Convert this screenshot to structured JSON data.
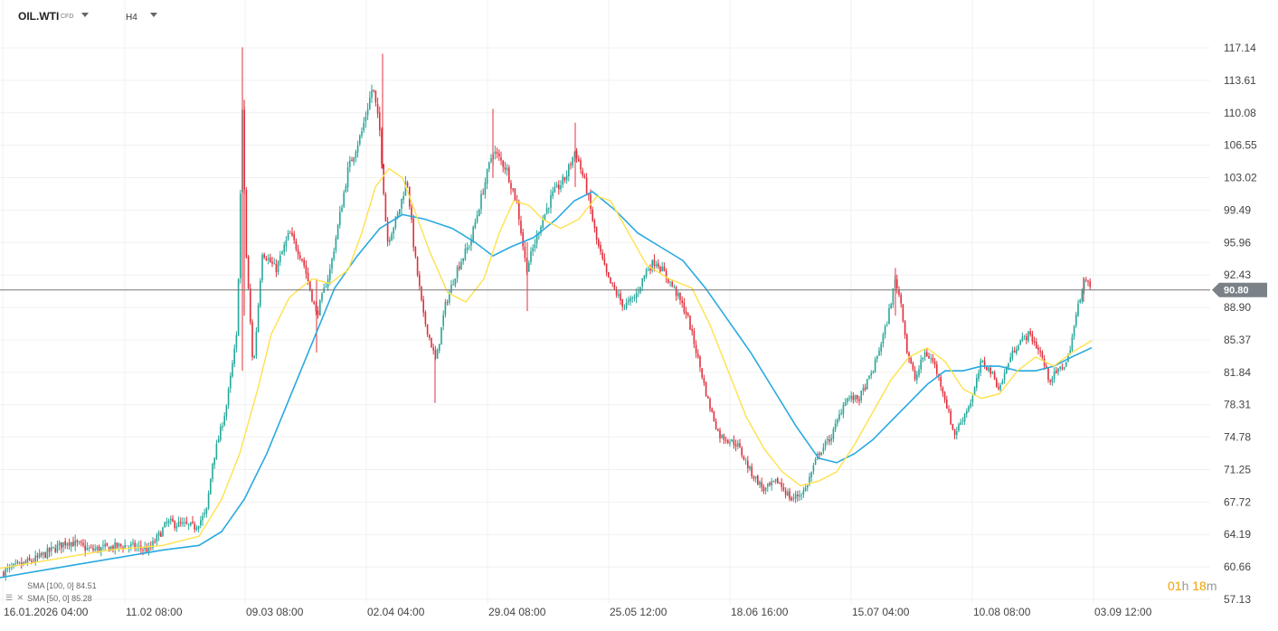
{
  "header": {
    "symbol": "OIL.WTI",
    "instrument_type": "CFD",
    "timeframe": "H4"
  },
  "indicators": [
    {
      "label": "SMA [100, 0] 84.51",
      "color": "#29a9e0"
    },
    {
      "label": "SMA [50, 0] 85.28",
      "color": "#ffe14a"
    }
  ],
  "current_price_label": "90.80",
  "countdown": {
    "hours": "01",
    "h_unit": "h",
    "minutes": "18",
    "m_unit": "m"
  },
  "colors": {
    "up": "#26a69a",
    "down": "#e0303c",
    "sma100": "#29a9e0",
    "sma50": "#ffe14a",
    "price_line": "#777777"
  },
  "chart_data": {
    "type": "candlestick",
    "y_axis_ticks": [
      "117.14",
      "113.61",
      "110.08",
      "106.55",
      "103.02",
      "99.49",
      "95.96",
      "92.43",
      "88.90",
      "85.37",
      "81.84",
      "78.31",
      "74.78",
      "71.25",
      "67.72",
      "64.19",
      "60.66",
      "57.13"
    ],
    "x_axis_ticks": [
      "16.01.2026 04:00",
      "11.02 08:00",
      "09.03 08:00",
      "02.04 04:00",
      "29.04 08:00",
      "25.05 12:00",
      "18.06 16:00",
      "15.07 04:00",
      "10.08 08:00",
      "03.09 12:00"
    ],
    "ylim": [
      57.13,
      117.14
    ],
    "current_price": 90.8,
    "close_path": [
      [
        0,
        60.0
      ],
      [
        40,
        61.5
      ],
      [
        75,
        63.5
      ],
      [
        100,
        62.5
      ],
      [
        140,
        63.0
      ],
      [
        165,
        62.5
      ],
      [
        185,
        65.5
      ],
      [
        215,
        65.0
      ],
      [
        228,
        66.5
      ],
      [
        235,
        72.0
      ],
      [
        250,
        78.0
      ],
      [
        262,
        86.0
      ],
      [
        268,
        110.0
      ],
      [
        272,
        95.0
      ],
      [
        280,
        82.0
      ],
      [
        290,
        95.0
      ],
      [
        305,
        93.0
      ],
      [
        320,
        97.0
      ],
      [
        335,
        94.0
      ],
      [
        350,
        88.0
      ],
      [
        365,
        93.0
      ],
      [
        385,
        104.0
      ],
      [
        400,
        108.0
      ],
      [
        412,
        113.0
      ],
      [
        420,
        108.0
      ],
      [
        428,
        96.0
      ],
      [
        440,
        99.0
      ],
      [
        450,
        103.0
      ],
      [
        458,
        95.0
      ],
      [
        468,
        88.0
      ],
      [
        482,
        83.0
      ],
      [
        492,
        89.0
      ],
      [
        505,
        93.0
      ],
      [
        520,
        96.0
      ],
      [
        530,
        100.0
      ],
      [
        545,
        106.0
      ],
      [
        560,
        104.0
      ],
      [
        572,
        100.0
      ],
      [
        582,
        93.0
      ],
      [
        598,
        98.0
      ],
      [
        610,
        101.0
      ],
      [
        625,
        103.0
      ],
      [
        636,
        106.0
      ],
      [
        648,
        102.0
      ],
      [
        660,
        96.0
      ],
      [
        672,
        92.0
      ],
      [
        690,
        89.0
      ],
      [
        702,
        90.0
      ],
      [
        715,
        93.0
      ],
      [
        725,
        94.0
      ],
      [
        745,
        91.0
      ],
      [
        760,
        88.0
      ],
      [
        775,
        82.0
      ],
      [
        782,
        79.0
      ],
      [
        795,
        75.0
      ],
      [
        815,
        74.0
      ],
      [
        830,
        71.0
      ],
      [
        845,
        69.0
      ],
      [
        860,
        70.0
      ],
      [
        875,
        68.0
      ],
      [
        890,
        69.0
      ],
      [
        905,
        73.0
      ],
      [
        920,
        75.0
      ],
      [
        935,
        79.0
      ],
      [
        950,
        79.0
      ],
      [
        965,
        82.0
      ],
      [
        980,
        87.0
      ],
      [
        990,
        92.0
      ],
      [
        997,
        89.0
      ],
      [
        1003,
        84.0
      ],
      [
        1012,
        81.0
      ],
      [
        1022,
        84.0
      ],
      [
        1032,
        83.0
      ],
      [
        1042,
        80.0
      ],
      [
        1055,
        75.0
      ],
      [
        1065,
        77.0
      ],
      [
        1075,
        79.0
      ],
      [
        1085,
        83.0
      ],
      [
        1095,
        82.0
      ],
      [
        1105,
        80.0
      ],
      [
        1115,
        83.0
      ],
      [
        1125,
        85.0
      ],
      [
        1138,
        86.0
      ],
      [
        1150,
        84.0
      ],
      [
        1160,
        81.0
      ],
      [
        1170,
        82.0
      ],
      [
        1180,
        83.0
      ],
      [
        1190,
        88.0
      ],
      [
        1198,
        92.0
      ],
      [
        1207,
        90.8
      ]
    ],
    "sma50_path": [
      [
        0,
        60.5
      ],
      [
        60,
        61.5
      ],
      [
        120,
        62.5
      ],
      [
        180,
        63.0
      ],
      [
        220,
        64.0
      ],
      [
        245,
        68.0
      ],
      [
        265,
        73.0
      ],
      [
        285,
        80.0
      ],
      [
        300,
        86.0
      ],
      [
        320,
        90.0
      ],
      [
        345,
        92.0
      ],
      [
        365,
        91.5
      ],
      [
        385,
        93.0
      ],
      [
        400,
        97.0
      ],
      [
        415,
        102.0
      ],
      [
        430,
        104.0
      ],
      [
        445,
        103.0
      ],
      [
        460,
        99.0
      ],
      [
        475,
        95.0
      ],
      [
        495,
        90.5
      ],
      [
        515,
        89.5
      ],
      [
        535,
        92.0
      ],
      [
        552,
        97.0
      ],
      [
        568,
        100.5
      ],
      [
        585,
        100.0
      ],
      [
        600,
        98.5
      ],
      [
        620,
        97.5
      ],
      [
        640,
        98.5
      ],
      [
        660,
        101.0
      ],
      [
        675,
        100.5
      ],
      [
        695,
        97.0
      ],
      [
        715,
        93.5
      ],
      [
        740,
        92.0
      ],
      [
        765,
        91.0
      ],
      [
        785,
        87.0
      ],
      [
        805,
        82.0
      ],
      [
        825,
        77.0
      ],
      [
        845,
        73.5
      ],
      [
        865,
        71.0
      ],
      [
        885,
        69.5
      ],
      [
        905,
        70.0
      ],
      [
        925,
        71.0
      ],
      [
        945,
        74.0
      ],
      [
        965,
        77.5
      ],
      [
        985,
        81.0
      ],
      [
        1005,
        83.5
      ],
      [
        1025,
        84.5
      ],
      [
        1045,
        83.0
      ],
      [
        1065,
        80.0
      ],
      [
        1085,
        79.0
      ],
      [
        1105,
        79.5
      ],
      [
        1125,
        82.0
      ],
      [
        1145,
        83.5
      ],
      [
        1165,
        82.5
      ],
      [
        1185,
        84.0
      ],
      [
        1207,
        85.28
      ]
    ],
    "sma100_path": [
      [
        0,
        59.5
      ],
      [
        60,
        60.5
      ],
      [
        120,
        61.5
      ],
      [
        180,
        62.5
      ],
      [
        220,
        63.0
      ],
      [
        245,
        64.5
      ],
      [
        270,
        68.0
      ],
      [
        295,
        73.0
      ],
      [
        320,
        79.0
      ],
      [
        345,
        85.0
      ],
      [
        370,
        91.0
      ],
      [
        395,
        94.5
      ],
      [
        420,
        97.5
      ],
      [
        445,
        99.0
      ],
      [
        470,
        98.5
      ],
      [
        500,
        97.5
      ],
      [
        525,
        96.0
      ],
      [
        545,
        94.5
      ],
      [
        565,
        95.5
      ],
      [
        590,
        96.5
      ],
      [
        615,
        98.5
      ],
      [
        635,
        100.5
      ],
      [
        655,
        101.5
      ],
      [
        680,
        99.5
      ],
      [
        705,
        97.0
      ],
      [
        730,
        95.5
      ],
      [
        755,
        94.0
      ],
      [
        780,
        91.0
      ],
      [
        805,
        87.5
      ],
      [
        830,
        84.0
      ],
      [
        855,
        80.0
      ],
      [
        880,
        76.0
      ],
      [
        905,
        72.5
      ],
      [
        925,
        72.0
      ],
      [
        945,
        73.0
      ],
      [
        965,
        74.5
      ],
      [
        985,
        76.5
      ],
      [
        1005,
        78.5
      ],
      [
        1025,
        80.5
      ],
      [
        1045,
        82.0
      ],
      [
        1065,
        82.0
      ],
      [
        1085,
        82.5
      ],
      [
        1105,
        82.5
      ],
      [
        1125,
        82.0
      ],
      [
        1145,
        82.0
      ],
      [
        1165,
        82.5
      ],
      [
        1185,
        83.5
      ],
      [
        1207,
        84.51
      ]
    ]
  }
}
